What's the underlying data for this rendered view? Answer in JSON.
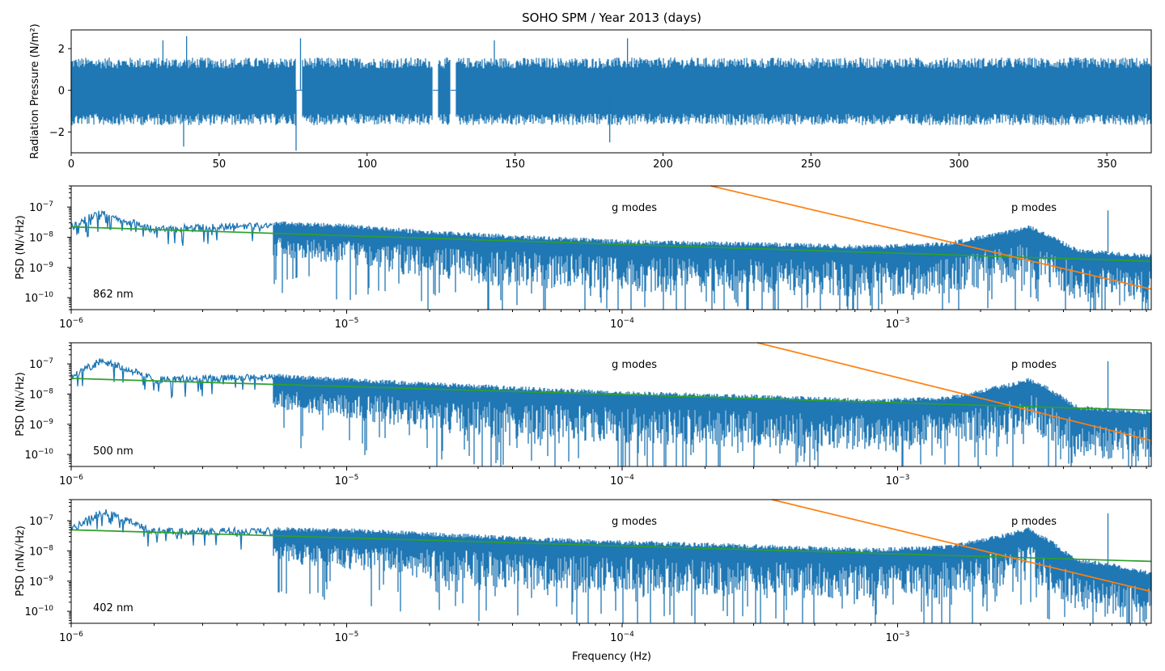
{
  "figure": {
    "colors": {
      "trace": "#1f77b4",
      "green_fit": "#2ca02c",
      "orange_fit": "#ff7f0e"
    }
  },
  "chart_data": [
    {
      "type": "line",
      "title": "SOHO SPM /  Year 2013 (days)",
      "xlabel": "",
      "ylabel": "Radiation Pressure (N/m²)",
      "xlim": [
        0,
        365
      ],
      "ylim": [
        -3,
        2.9
      ],
      "x_ticks": [
        "0",
        "50",
        "100",
        "150",
        "200",
        "250",
        "300",
        "350"
      ],
      "y_ticks": [
        "−2",
        "0",
        "2"
      ],
      "series": [
        {
          "name": "",
          "description": "time series",
          "envelope_upper": 1.5,
          "envelope_lower": -1.6,
          "gaps_days": [
            [
              76,
              78
            ],
            [
              122,
              124
            ],
            [
              128,
              130
            ]
          ],
          "spikes": [
            {
              "x": 31,
              "y": 2.4
            },
            {
              "x": 39,
              "y": 2.6
            },
            {
              "x": 38,
              "y": -2.7
            },
            {
              "x": 77.5,
              "y": 2.5
            },
            {
              "x": 76,
              "y": -2.9
            },
            {
              "x": 143,
              "y": 2.4
            },
            {
              "x": 188,
              "y": 2.5
            },
            {
              "x": 182,
              "y": -2.5
            }
          ]
        }
      ]
    },
    {
      "type": "line",
      "title": "",
      "xlabel": "",
      "ylabel": "PSD (N/√Hz)",
      "xscale": "log",
      "yscale": "log",
      "xlim": [
        1e-06,
        0.00833
      ],
      "ylim": [
        4e-11,
        5e-07
      ],
      "x_ticks": [
        "10",
        "10",
        "10",
        "10"
      ],
      "x_tick_exponents": [
        "−6",
        "−5",
        "−4",
        "−3"
      ],
      "y_ticks": [
        "10",
        "10",
        "10",
        "10"
      ],
      "y_tick_exponents": [
        "−10",
        "−9",
        "−8",
        "−7"
      ],
      "annotations": [
        "g modes",
        "p modes",
        "862 nm"
      ],
      "series": [
        {
          "name": "",
          "description": "PSD",
          "color": "#1f77b4",
          "x": [
            1e-06,
            1.25e-06,
            2e-06,
            5e-06,
            1e-05,
            2e-05,
            5e-05,
            0.0001,
            0.0003,
            0.0008,
            0.0015,
            0.0025,
            0.003,
            0.0035,
            0.0045,
            0.0058,
            0.00833
          ],
          "y": [
            2.2e-08,
            6.5e-08,
            1.8e-08,
            2.5e-08,
            2e-08,
            1.2e-08,
            8e-09,
            6e-09,
            5e-09,
            4e-09,
            5e-09,
            1.2e-08,
            1.8e-08,
            1e-08,
            3e-09,
            2.5e-09,
            2e-09
          ]
        },
        {
          "name": "",
          "description": "linear fit",
          "color": "#2ca02c",
          "x": [
            1e-06,
            0.00833
          ],
          "y": [
            2.2e-08,
            1.6e-09
          ]
        },
        {
          "name": "",
          "description": "steep power law",
          "color": "#ff7f0e",
          "x": [
            0.00021,
            0.00833
          ],
          "y": [
            5e-07,
            1.9e-10
          ]
        }
      ]
    },
    {
      "type": "line",
      "title": "",
      "xlabel": "",
      "ylabel": "PSD (N/√Hz)",
      "xscale": "log",
      "yscale": "log",
      "xlim": [
        1e-06,
        0.00833
      ],
      "ylim": [
        4e-11,
        5e-07
      ],
      "x_ticks": [
        "10",
        "10",
        "10",
        "10"
      ],
      "x_tick_exponents": [
        "−6",
        "−5",
        "−4",
        "−3"
      ],
      "y_ticks": [
        "10",
        "10",
        "10",
        "10"
      ],
      "y_tick_exponents": [
        "−10",
        "−9",
        "−8",
        "−7"
      ],
      "annotations": [
        "g modes",
        "p modes",
        "500 nm"
      ],
      "series": [
        {
          "name": "",
          "description": "PSD",
          "color": "#1f77b4",
          "x": [
            1e-06,
            1.3e-06,
            2e-06,
            5e-06,
            1e-05,
            2e-05,
            5e-05,
            0.0001,
            0.0003,
            0.0008,
            0.0015,
            0.0025,
            0.003,
            0.0035,
            0.0045,
            0.0058,
            0.00833
          ],
          "y": [
            3.5e-08,
            1.4e-07,
            3e-08,
            3.5e-08,
            2.5e-08,
            1.8e-08,
            1.2e-08,
            9e-09,
            7e-09,
            5e-09,
            6e-09,
            1.6e-08,
            2.5e-08,
            1.3e-08,
            3e-09,
            2.5e-09,
            2e-09
          ]
        },
        {
          "name": "",
          "description": "linear fit",
          "color": "#2ca02c",
          "x": [
            1e-06,
            0.00833
          ],
          "y": [
            3.3e-08,
            2.9e-09
          ]
        },
        {
          "name": "",
          "description": "steep power law",
          "color": "#ff7f0e",
          "x": [
            0.00031,
            0.00833
          ],
          "y": [
            5e-07,
            2.9e-10
          ]
        }
      ]
    },
    {
      "type": "line",
      "title": "",
      "xlabel": "Frequency (Hz)",
      "ylabel": "PSD (nN/√Hz)",
      "xscale": "log",
      "yscale": "log",
      "xlim": [
        1e-06,
        0.00833
      ],
      "ylim": [
        4e-11,
        5e-07
      ],
      "x_ticks": [
        "10",
        "10",
        "10",
        "10"
      ],
      "x_tick_exponents": [
        "−6",
        "−5",
        "−4",
        "−3"
      ],
      "y_ticks": [
        "10",
        "10",
        "10",
        "10"
      ],
      "y_tick_exponents": [
        "−10",
        "−9",
        "−8",
        "−7"
      ],
      "annotations": [
        "g modes",
        "p modes",
        "402 nm"
      ],
      "series": [
        {
          "name": "",
          "description": "PSD",
          "color": "#1f77b4",
          "x": [
            1e-06,
            1.3e-06,
            2e-06,
            5e-06,
            1e-05,
            2e-05,
            5e-05,
            0.0001,
            0.0003,
            0.0008,
            0.0015,
            0.0025,
            0.003,
            0.0035,
            0.0045,
            0.0058,
            0.00833
          ],
          "y": [
            5e-08,
            2e-07,
            4.5e-08,
            4.5e-08,
            4e-08,
            3e-08,
            2e-08,
            1.6e-08,
            1.2e-08,
            9e-09,
            1.1e-08,
            2.8e-08,
            4.5e-08,
            2e-08,
            4e-09,
            3e-09,
            1.5e-09
          ]
        },
        {
          "name": "",
          "description": "linear fit",
          "color": "#2ca02c",
          "x": [
            1e-06,
            0.00833
          ],
          "y": [
            5e-08,
            4.5e-09
          ]
        },
        {
          "name": "",
          "description": "steep power law",
          "color": "#ff7f0e",
          "x": [
            0.00035,
            0.00833
          ],
          "y": [
            5e-07,
            4.5e-10
          ]
        }
      ]
    }
  ]
}
